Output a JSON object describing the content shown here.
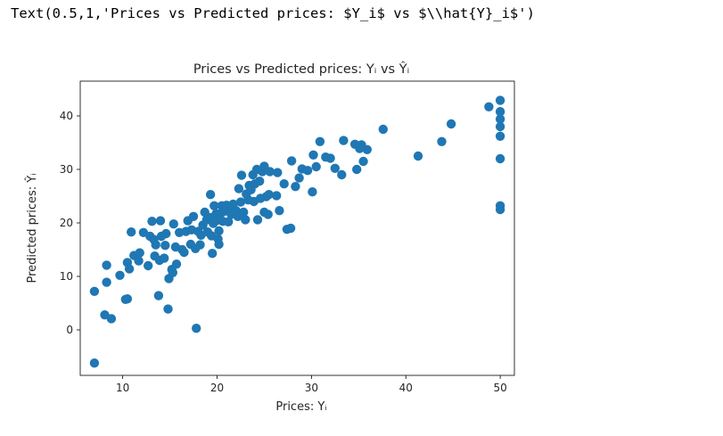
{
  "output_text": "Text(0.5,1,'Prices vs Predicted prices: $Y_i$ vs $\\\\hat{Y}_i$')",
  "chart_data": {
    "type": "scatter",
    "title": "Prices vs Predicted prices: Yᵢ vs Ŷᵢ",
    "xlabel": "Prices: Yᵢ",
    "ylabel": "Predicted prices: Ŷᵢ",
    "xlim": [
      5.5,
      51.5
    ],
    "ylim": [
      -8.5,
      46.5
    ],
    "xticks": [
      10,
      20,
      30,
      40,
      50
    ],
    "yticks": [
      0,
      10,
      20,
      30,
      40
    ],
    "grid": false,
    "marker_color": "#1f77b4",
    "points": [
      [
        7.0,
        -6.2
      ],
      [
        7.0,
        7.2
      ],
      [
        8.1,
        2.8
      ],
      [
        8.3,
        8.9
      ],
      [
        8.3,
        12.1
      ],
      [
        8.8,
        2.1
      ],
      [
        9.7,
        10.2
      ],
      [
        10.3,
        5.7
      ],
      [
        10.5,
        5.8
      ],
      [
        10.5,
        12.6
      ],
      [
        10.7,
        11.4
      ],
      [
        10.9,
        18.3
      ],
      [
        11.2,
        13.9
      ],
      [
        11.7,
        12.9
      ],
      [
        11.8,
        14.4
      ],
      [
        12.2,
        18.2
      ],
      [
        12.7,
        12.0
      ],
      [
        12.9,
        17.5
      ],
      [
        13.1,
        20.3
      ],
      [
        13.3,
        16.9
      ],
      [
        13.4,
        13.8
      ],
      [
        13.5,
        15.9
      ],
      [
        13.8,
        6.4
      ],
      [
        13.9,
        13.0
      ],
      [
        14.0,
        20.4
      ],
      [
        14.1,
        17.5
      ],
      [
        14.4,
        13.4
      ],
      [
        14.5,
        15.8
      ],
      [
        14.6,
        18.0
      ],
      [
        14.8,
        3.9
      ],
      [
        14.9,
        9.6
      ],
      [
        15.2,
        11.3
      ],
      [
        15.3,
        10.7
      ],
      [
        15.4,
        19.8
      ],
      [
        15.6,
        15.5
      ],
      [
        15.7,
        12.3
      ],
      [
        16.0,
        18.2
      ],
      [
        16.3,
        15.0
      ],
      [
        16.5,
        14.5
      ],
      [
        16.7,
        18.4
      ],
      [
        16.9,
        20.4
      ],
      [
        17.2,
        16.0
      ],
      [
        17.3,
        18.7
      ],
      [
        17.5,
        21.2
      ],
      [
        17.7,
        15.2
      ],
      [
        17.8,
        0.3
      ],
      [
        18.0,
        18.4
      ],
      [
        18.2,
        15.9
      ],
      [
        18.3,
        17.7
      ],
      [
        18.5,
        19.6
      ],
      [
        18.7,
        22.0
      ],
      [
        18.9,
        20.6
      ],
      [
        19.0,
        18.3
      ],
      [
        19.2,
        21.0
      ],
      [
        19.3,
        25.3
      ],
      [
        19.4,
        17.6
      ],
      [
        19.5,
        14.3
      ],
      [
        19.6,
        19.9
      ],
      [
        19.7,
        23.2
      ],
      [
        19.9,
        21.7
      ],
      [
        20.0,
        20.5
      ],
      [
        20.1,
        17.0
      ],
      [
        20.2,
        18.5
      ],
      [
        20.2,
        16.0
      ],
      [
        20.4,
        21.8
      ],
      [
        20.5,
        23.2
      ],
      [
        20.6,
        20.3
      ],
      [
        20.8,
        22.2
      ],
      [
        21.0,
        23.3
      ],
      [
        21.2,
        20.2
      ],
      [
        21.4,
        22.4
      ],
      [
        21.5,
        21.6
      ],
      [
        21.7,
        23.5
      ],
      [
        22.0,
        22.3
      ],
      [
        22.2,
        21.2
      ],
      [
        22.3,
        26.4
      ],
      [
        22.5,
        23.9
      ],
      [
        22.6,
        28.9
      ],
      [
        22.8,
        22.0
      ],
      [
        23.0,
        20.6
      ],
      [
        23.1,
        25.4
      ],
      [
        23.3,
        24.3
      ],
      [
        23.4,
        27.0
      ],
      [
        23.6,
        26.2
      ],
      [
        23.8,
        29.0
      ],
      [
        23.9,
        24.0
      ],
      [
        24.0,
        27.3
      ],
      [
        24.2,
        30.0
      ],
      [
        24.3,
        20.6
      ],
      [
        24.5,
        27.8
      ],
      [
        24.6,
        24.6
      ],
      [
        24.8,
        29.6
      ],
      [
        25.0,
        30.6
      ],
      [
        25.0,
        22.0
      ],
      [
        25.2,
        24.9
      ],
      [
        25.4,
        21.6
      ],
      [
        25.5,
        25.3
      ],
      [
        25.6,
        29.6
      ],
      [
        26.3,
        25.1
      ],
      [
        26.4,
        29.4
      ],
      [
        26.6,
        22.3
      ],
      [
        27.1,
        27.3
      ],
      [
        27.4,
        18.8
      ],
      [
        27.8,
        19.0
      ],
      [
        27.9,
        31.6
      ],
      [
        28.3,
        26.8
      ],
      [
        28.7,
        28.4
      ],
      [
        29.0,
        30.1
      ],
      [
        29.6,
        29.8
      ],
      [
        30.1,
        25.8
      ],
      [
        30.2,
        32.7
      ],
      [
        30.5,
        30.5
      ],
      [
        30.9,
        35.2
      ],
      [
        31.5,
        32.3
      ],
      [
        32.0,
        32.1
      ],
      [
        32.5,
        30.2
      ],
      [
        33.2,
        29.0
      ],
      [
        33.4,
        35.4
      ],
      [
        34.6,
        34.7
      ],
      [
        34.8,
        30.0
      ],
      [
        35.1,
        33.9
      ],
      [
        35.3,
        34.6
      ],
      [
        35.5,
        31.5
      ],
      [
        35.9,
        33.7
      ],
      [
        37.6,
        37.5
      ],
      [
        41.3,
        32.5
      ],
      [
        43.8,
        35.2
      ],
      [
        44.8,
        38.5
      ],
      [
        48.8,
        41.7
      ],
      [
        50.0,
        42.9
      ],
      [
        50.0,
        40.8
      ],
      [
        50.0,
        39.4
      ],
      [
        50.0,
        38.0
      ],
      [
        50.0,
        36.2
      ],
      [
        50.0,
        32.0
      ],
      [
        50.0,
        23.2
      ],
      [
        50.0,
        22.5
      ]
    ]
  }
}
